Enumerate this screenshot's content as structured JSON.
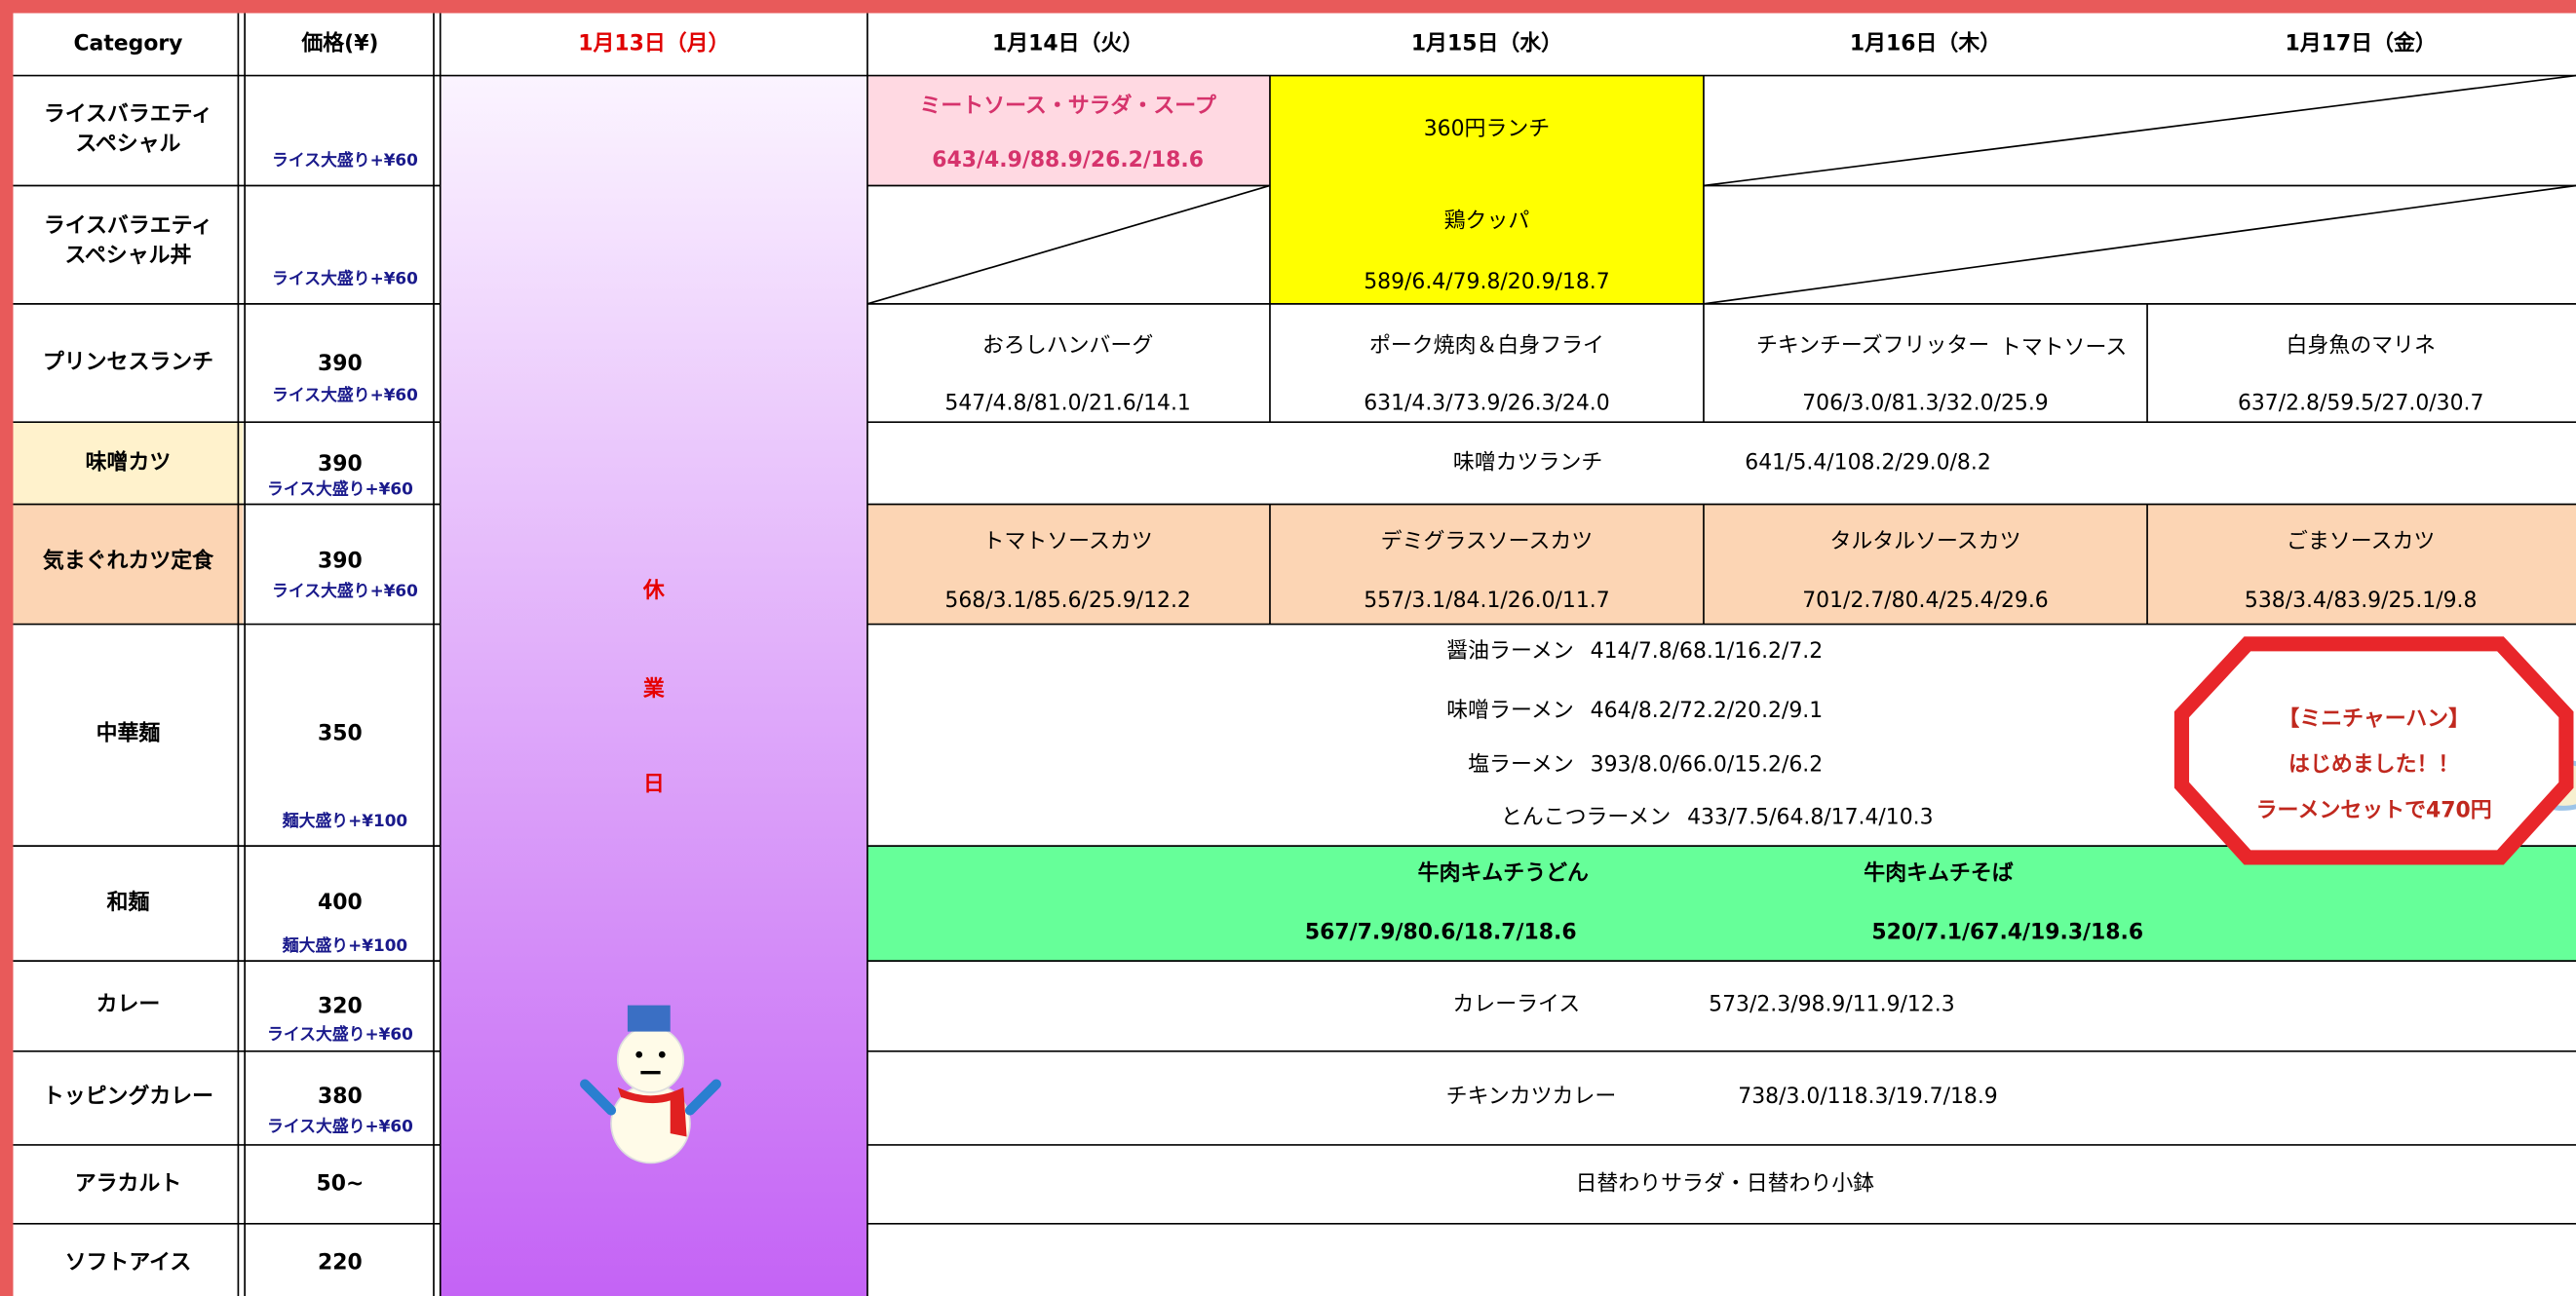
{
  "header": {
    "columns": [
      "Category",
      "価格(¥)",
      "1月13日（月）",
      "1月14日（火）",
      "1月15日（水）",
      "1月16日（木）",
      "1月17日（金）"
    ]
  },
  "rows": [
    {
      "category": [
        "ライスバラエティ",
        "スペシャル"
      ],
      "note": "ライス大盛り+¥60"
    },
    {
      "category": [
        "ライスバラエティ",
        "スペシャル丼"
      ],
      "note": "ライス大盛り+¥60"
    },
    {
      "category": [
        "プリンセスランチ"
      ],
      "price": "390",
      "note": "ライス大盛り+¥60"
    },
    {
      "category": [
        "味噌カツ"
      ],
      "price": "390",
      "note": "ライス大盛り+¥60"
    },
    {
      "category": [
        "気まぐれカツ定食"
      ],
      "price": "390",
      "note": "ライス大盛り+¥60"
    },
    {
      "category": [
        "中華麺"
      ],
      "price": "350",
      "note": "麺大盛り+¥100"
    },
    {
      "category": [
        "和麺"
      ],
      "price": "400",
      "note": "麺大盛り+¥100"
    },
    {
      "category": [
        "カレー"
      ],
      "price": "320",
      "note": "ライス大盛り+¥60"
    },
    {
      "category": [
        "トッピングカレー"
      ],
      "price": "380",
      "note": "ライス大盛り+¥60"
    },
    {
      "category": [
        "アラカルト"
      ],
      "price": "50~"
    },
    {
      "category": [
        "ソフトアイス"
      ],
      "price": "220"
    }
  ],
  "closed_day": [
    "休",
    "業",
    "日"
  ],
  "menu": {
    "rice_special_tue": {
      "name": "ミートソース・サラダ・スープ",
      "nutrition": "643/4.9/88.9/26.2/18.6"
    },
    "lunch_360": {
      "title": "360円ランチ",
      "name": "鶏クッパ",
      "nutrition": "589/6.4/79.8/20.9/18.7"
    },
    "princess": [
      {
        "name": "おろしハンバーグ",
        "nutrition": "547/4.8/81.0/21.6/14.1"
      },
      {
        "name": "ポーク焼肉＆白身フライ",
        "nutrition": "631/4.3/73.9/26.3/24.0"
      },
      {
        "name": "チキンチーズフリッター",
        "suffix": "トマトソース",
        "nutrition": "706/3.0/81.3/32.0/25.9"
      },
      {
        "name": "白身魚のマリネ",
        "nutrition": "637/2.8/59.5/27.0/30.7"
      }
    ],
    "miso_katsu": {
      "name": "味噌カツランチ",
      "nutrition": "641/5.4/108.2/29.0/8.2"
    },
    "kimagure": [
      {
        "name": "トマトソースカツ",
        "nutrition": "568/3.1/85.6/25.9/12.2"
      },
      {
        "name": "デミグラスソースカツ",
        "nutrition": "557/3.1/84.1/26.0/11.7"
      },
      {
        "name": "タルタルソースカツ",
        "nutrition": "701/2.7/80.4/25.4/29.6"
      },
      {
        "name": "ごまソースカツ",
        "nutrition": "538/3.4/83.9/25.1/9.8"
      }
    ],
    "ramen": [
      {
        "name": "醤油ラーメン",
        "nutrition": "414/7.8/68.1/16.2/7.2"
      },
      {
        "name": "味噌ラーメン",
        "nutrition": "464/8.2/72.2/20.2/9.1"
      },
      {
        "name": "塩ラーメン",
        "nutrition": "393/8.0/66.0/15.2/6.2"
      },
      {
        "name": "とんこつラーメン",
        "nutrition": "433/7.5/64.8/17.4/10.3"
      }
    ],
    "wamen": [
      {
        "name": "牛肉キムチうどん",
        "nutrition": "567/7.9/80.6/18.7/18.6"
      },
      {
        "name": "牛肉キムチそば",
        "nutrition": "520/7.1/67.4/19.3/18.6"
      }
    ],
    "curry": {
      "name": "カレーライス",
      "nutrition": "573/2.3/98.9/11.9/12.3"
    },
    "topping_curry": {
      "name": "チキンカツカレー",
      "nutrition": "738/3.0/118.3/19.7/18.9"
    },
    "alacarte": {
      "name": "日替わりサラダ・日替わり小鉢"
    }
  },
  "badge": [
    "【ミニチャーハン】",
    "はじめました！！",
    "ラーメンセットで470円"
  ]
}
